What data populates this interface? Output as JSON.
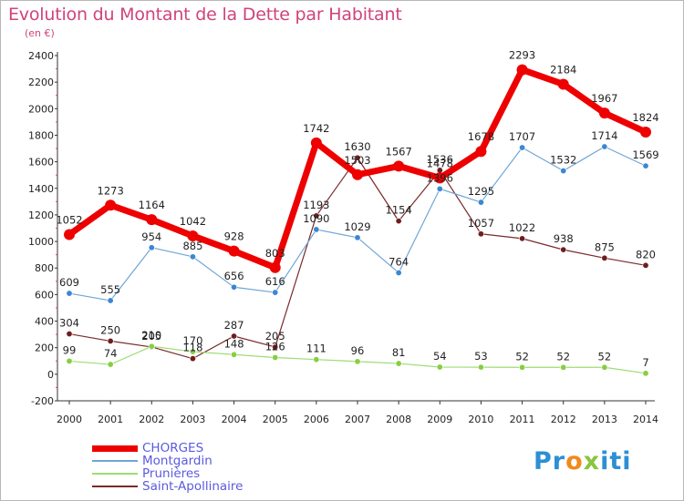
{
  "title": "Evolution du Montant de la Dette par Habitant",
  "subtitle": "(en €)",
  "logo": "Proxiti",
  "chart_data": {
    "type": "line",
    "title": "Evolution du Montant de la Dette par Habitant",
    "subtitle": "(en €)",
    "xlabel": "",
    "ylabel": "",
    "ylim": [
      -200,
      2400
    ],
    "ytick_step": 200,
    "grid": false,
    "legend_position": "bottom-left",
    "categories": [
      "2000",
      "2001",
      "2002",
      "2003",
      "2004",
      "2005",
      "2006",
      "2007",
      "2008",
      "2009",
      "2010",
      "2011",
      "2012",
      "2013",
      "2014"
    ],
    "series": [
      {
        "name": "CHORGES",
        "color": "#ee0000",
        "marker": "#ee0000",
        "width": 7,
        "values": [
          1052,
          1273,
          1164,
          1042,
          928,
          803,
          1742,
          1503,
          1567,
          1478,
          1678,
          2293,
          2184,
          1967,
          1824
        ]
      },
      {
        "name": "Montgardin",
        "color": "#6fa6d6",
        "marker": "#3b87d2",
        "width": 1.2,
        "values": [
          609,
          555,
          954,
          885,
          656,
          616,
          1090,
          1029,
          764,
          1396,
          1295,
          1707,
          1532,
          1714,
          1569
        ]
      },
      {
        "name": "Prunières",
        "color": "#9ddc74",
        "marker": "#84d040",
        "width": 1.2,
        "values": [
          99,
          74,
          210,
          170,
          148,
          126,
          111,
          96,
          81,
          54,
          53,
          52,
          52,
          52,
          7
        ]
      },
      {
        "name": "Saint-Apollinaire",
        "color": "#7a2a2a",
        "marker": "#6e1e1e",
        "width": 1.2,
        "values": [
          304,
          250,
          205,
          118,
          287,
          205,
          1193,
          1630,
          1154,
          1536,
          1057,
          1022,
          938,
          875,
          820
        ]
      }
    ],
    "data_labels": [
      [
        "1052",
        "1273",
        "1164",
        "1042",
        "928",
        "803",
        "1742",
        "1503",
        "1567",
        "1478",
        "1678",
        "2293",
        "2184",
        "1967",
        "1824"
      ],
      [
        "609",
        "555",
        "954",
        "885",
        "656",
        "616",
        "1090",
        "1029",
        "764",
        "1396",
        "1295",
        "1707",
        "1532",
        "1714",
        "1569"
      ],
      [
        "99",
        "74",
        "210",
        "170",
        "148",
        "126",
        "111",
        "96",
        "81",
        "54",
        "53",
        "52",
        "52",
        "52",
        "7"
      ],
      [
        "304",
        "250",
        "205",
        "118",
        "287",
        "205",
        "1193",
        "1630",
        "1154",
        "1536",
        "1057",
        "1022",
        "938",
        "875",
        "820"
      ]
    ]
  }
}
